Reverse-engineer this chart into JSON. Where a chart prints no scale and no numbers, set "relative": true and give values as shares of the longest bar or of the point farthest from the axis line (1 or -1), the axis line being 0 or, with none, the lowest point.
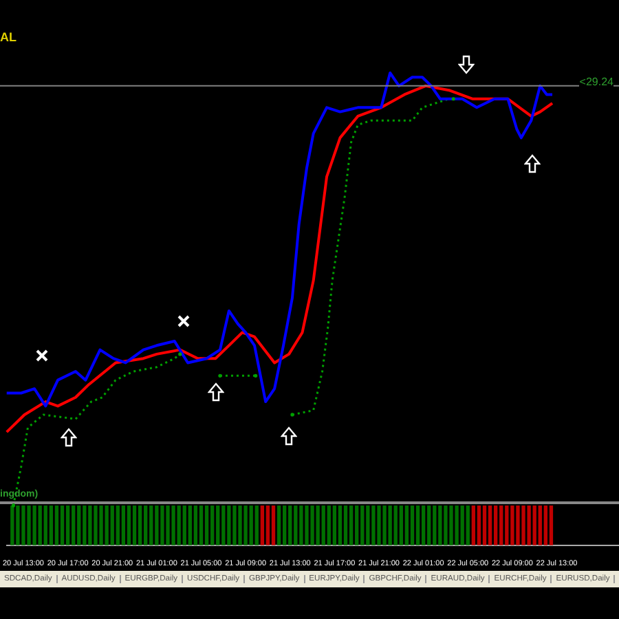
{
  "chart_data": {
    "type": "line",
    "relative": true,
    "tick_labels": "x",
    "legend": false,
    "marker": "none",
    "line_style": "solid",
    "xlim": [
      "--07-20T11:30",
      "--07-22T18:36"
    ],
    "xticks": [
      {
        "value": "--07-20T13:00",
        "label": "20 Jul 13:00"
      },
      {
        "value": "--07-20T17:00",
        "label": "20 Jul 17:00"
      },
      {
        "value": "--07-20T21:00",
        "label": "20 Jul 21:00"
      },
      {
        "value": "--07-21T01:00",
        "label": "21 Jul 01:00"
      },
      {
        "value": "--07-21T05:00",
        "label": "21 Jul 05:00"
      },
      {
        "value": "--07-21T09:00",
        "label": "21 Jul 09:00"
      },
      {
        "value": "--07-21T13:00",
        "label": "21 Jul 13:00"
      },
      {
        "value": "--07-21T17:00",
        "label": "21 Jul 17:00"
      },
      {
        "value": "--07-21T21:00",
        "label": "21 Jul 21:00"
      },
      {
        "value": "--07-22T01:00",
        "label": "22 Jul 01:00"
      },
      {
        "value": "--07-22T05:00",
        "label": "22 Jul 05:00"
      },
      {
        "value": "--07-22T09:00",
        "label": "22 Jul 09:00"
      },
      {
        "value": "--07-22T13:00",
        "label": "22 Jul 13:00"
      }
    ],
    "series": [
      {
        "color": "#0000ff",
        "x": [
          "--07-20T11:30",
          "--07-20T12:48",
          "--07-20T14:00",
          "--07-20T15:00",
          "--07-20T16:06",
          "--07-20T17:42",
          "--07-20T18:36",
          "--07-20T19:54",
          "--07-20T21:06",
          "--07-20T22:12",
          "--07-20T23:48",
          "--07-21T01:00",
          "--07-21T02:36",
          "--07-21T03:48",
          "--07-21T05:30",
          "--07-21T06:42",
          "--07-21T07:30",
          "--07-21T08:18",
          "--07-21T09:00",
          "--07-21T09:48",
          "--07-21T10:48",
          "--07-21T11:36",
          "--07-21T12:24",
          "--07-21T13:12",
          "--07-21T13:48",
          "--07-21T14:30",
          "--07-21T15:06",
          "--07-21T16:18",
          "--07-21T17:30",
          "--07-21T19:06",
          "--07-21T21:12",
          "--07-21T22:00",
          "--07-21T22:48",
          "--07-22T00:00",
          "--07-22T00:54",
          "--07-22T01:42",
          "--07-22T02:30",
          "--07-22T04:30",
          "--07-22T05:48",
          "--07-22T06:36",
          "--07-22T07:24",
          "--07-22T08:36",
          "--07-22T09:24",
          "--07-22T09:48",
          "--07-22T10:42",
          "--07-22T11:30",
          "--07-22T12:06",
          "--07-22T12:36"
        ],
        "values": [
          0.26,
          0.26,
          0.27,
          0.23,
          0.29,
          0.31,
          0.29,
          0.36,
          0.34,
          0.33,
          0.36,
          0.37,
          0.38,
          0.33,
          0.34,
          0.36,
          0.45,
          0.42,
          0.4,
          0.37,
          0.24,
          0.27,
          0.37,
          0.48,
          0.65,
          0.78,
          0.86,
          0.92,
          0.91,
          0.92,
          0.92,
          1.0,
          0.97,
          0.99,
          0.99,
          0.97,
          0.94,
          0.94,
          0.92,
          0.93,
          0.94,
          0.94,
          0.87,
          0.85,
          0.89,
          0.97,
          0.95,
          0.95
        ]
      },
      {
        "color": "#ff0000",
        "x": [
          "--07-20T11:30",
          "--07-20T13:06",
          "--07-20T15:00",
          "--07-20T16:06",
          "--07-20T17:42",
          "--07-20T18:54",
          "--07-20T21:18",
          "--07-20T23:48",
          "--07-21T01:00",
          "--07-21T03:06",
          "--07-21T04:42",
          "--07-21T06:18",
          "--07-21T07:30",
          "--07-21T08:42",
          "--07-21T09:48",
          "--07-21T11:36",
          "--07-21T12:54",
          "--07-21T14:06",
          "--07-21T15:06",
          "--07-21T16:18",
          "--07-21T17:30",
          "--07-21T19:06",
          "--07-21T21:12",
          "--07-21T23:18",
          "--07-22T01:12",
          "--07-22T03:18",
          "--07-22T05:24",
          "--07-22T07:24",
          "--07-22T08:36",
          "--07-22T10:42",
          "--07-22T11:30",
          "--07-22T12:36"
        ],
        "values": [
          0.17,
          0.21,
          0.24,
          0.23,
          0.25,
          0.28,
          0.33,
          0.34,
          0.35,
          0.36,
          0.34,
          0.34,
          0.37,
          0.4,
          0.39,
          0.33,
          0.35,
          0.4,
          0.52,
          0.76,
          0.85,
          0.9,
          0.92,
          0.95,
          0.97,
          0.96,
          0.94,
          0.94,
          0.94,
          0.9,
          0.91,
          0.93
        ]
      },
      {
        "color": "#00a000",
        "line_style": "dotted",
        "x": [
          "--07-20T12:06",
          "--07-20T12:48",
          "--07-20T13:24",
          "--07-20T14:48",
          "--07-20T17:42",
          "--07-20T19:06",
          "--07-20T20:06",
          "--07-20T21:18",
          "--07-20T22:54",
          "--07-21T01:00",
          "--07-21T02:36",
          "--07-21T03:06",
          "--07-21T05:00",
          "--07-21T06:42",
          "--07-21T09:54",
          "--07-21T11:00",
          "--07-21T13:12",
          "--07-21T15:06",
          "--07-21T15:54",
          "--07-21T16:24",
          "--07-21T16:48",
          "--07-21T17:54",
          "--07-21T18:30",
          "--07-21T19:06",
          "--07-21T20:18",
          "--07-22T00:00",
          "--07-22T00:54",
          "--07-22T02:06",
          "--07-22T03:18",
          "--07-22T03:42"
        ],
        "values": [
          0,
          0.09,
          0.18,
          0.21,
          0.2,
          0.24,
          0.25,
          0.29,
          0.31,
          0.32,
          0.34,
          0.35,
          null,
          0.3,
          0.3,
          null,
          0.21,
          0.22,
          0.31,
          0.41,
          0.52,
          0.71,
          0.84,
          0.88,
          0.89,
          0.89,
          0.92,
          0.93,
          0.94,
          0.94
        ]
      },
      {
        "type": "bar",
        "axis": "y2",
        "x": [
          "--07-20T12:00",
          "--07-20T12:30",
          "--07-20T13:00",
          "--07-20T13:30",
          "--07-20T14:00",
          "--07-20T14:30",
          "--07-20T15:00",
          "--07-20T15:30",
          "--07-20T16:00",
          "--07-20T16:30",
          "--07-20T17:00",
          "--07-20T17:30",
          "--07-20T18:00",
          "--07-20T18:30",
          "--07-20T19:00",
          "--07-20T19:30",
          "--07-20T20:00",
          "--07-20T20:30",
          "--07-20T21:00",
          "--07-20T21:30",
          "--07-20T22:00",
          "--07-20T22:30",
          "--07-20T23:00",
          "--07-20T23:30",
          "--07-21T00:00",
          "--07-21T00:30",
          "--07-21T01:00",
          "--07-21T01:30",
          "--07-21T02:00",
          "--07-21T02:30",
          "--07-21T03:00",
          "--07-21T03:30",
          "--07-21T04:00",
          "--07-21T04:30",
          "--07-21T05:00",
          "--07-21T05:30",
          "--07-21T06:00",
          "--07-21T06:30",
          "--07-21T07:00",
          "--07-21T07:30",
          "--07-21T08:00",
          "--07-21T08:30",
          "--07-21T09:00",
          "--07-21T09:30",
          "--07-21T10:00",
          "--07-21T10:30",
          "--07-21T11:00",
          "--07-21T11:30",
          "--07-21T12:00",
          "--07-21T12:30",
          "--07-21T13:00",
          "--07-21T13:30",
          "--07-21T14:00",
          "--07-21T14:30",
          "--07-21T15:00",
          "--07-21T15:30",
          "--07-21T16:00",
          "--07-21T16:30",
          "--07-21T17:00",
          "--07-21T17:30",
          "--07-21T18:00",
          "--07-21T18:30",
          "--07-21T19:00",
          "--07-21T19:30",
          "--07-21T20:00",
          "--07-21T20:30",
          "--07-21T21:00",
          "--07-21T21:30",
          "--07-21T22:00",
          "--07-21T22:30",
          "--07-21T23:00",
          "--07-21T23:30",
          "--07-22T00:00",
          "--07-22T00:30",
          "--07-22T01:00",
          "--07-22T01:30",
          "--07-22T02:00",
          "--07-22T02:30",
          "--07-22T03:00",
          "--07-22T03:30",
          "--07-22T04:00",
          "--07-22T04:30",
          "--07-22T05:00",
          "--07-22T05:30",
          "--07-22T06:00",
          "--07-22T06:30",
          "--07-22T07:00",
          "--07-22T07:30",
          "--07-22T08:00",
          "--07-22T08:30",
          "--07-22T09:00",
          "--07-22T09:30",
          "--07-22T10:00",
          "--07-22T10:30",
          "--07-22T11:00",
          "--07-22T11:30",
          "--07-22T12:00",
          "--07-22T12:30"
        ],
        "values": [
          1,
          1,
          1,
          1,
          1,
          1,
          1,
          1,
          1,
          1,
          1,
          1,
          1,
          1,
          1,
          1,
          1,
          1,
          1,
          1,
          1,
          1,
          1,
          1,
          1,
          1,
          1,
          1,
          1,
          1,
          1,
          1,
          1,
          1,
          1,
          1,
          1,
          1,
          1,
          1,
          1,
          1,
          1,
          1,
          1,
          1,
          1,
          1,
          1,
          1,
          1,
          1,
          1,
          1,
          1,
          1,
          1,
          1,
          1,
          1,
          1,
          1,
          1,
          1,
          1,
          1,
          1,
          1,
          1,
          1,
          1,
          1,
          1,
          1,
          1,
          1,
          1,
          1,
          1,
          1,
          1,
          1,
          1,
          1,
          1,
          1,
          1,
          1,
          1,
          1,
          1,
          1,
          1,
          1,
          1,
          1,
          1,
          1
        ],
        "colors": [
          "#007000",
          "#007000",
          "#007000",
          "#007000",
          "#007000",
          "#007000",
          "#007000",
          "#007000",
          "#007000",
          "#007000",
          "#007000",
          "#007000",
          "#007000",
          "#007000",
          "#007000",
          "#007000",
          "#007000",
          "#007000",
          "#007000",
          "#007000",
          "#007000",
          "#007000",
          "#007000",
          "#007000",
          "#007000",
          "#007000",
          "#007000",
          "#007000",
          "#007000",
          "#007000",
          "#007000",
          "#007000",
          "#007000",
          "#007000",
          "#007000",
          "#007000",
          "#007000",
          "#007000",
          "#007000",
          "#007000",
          "#007000",
          "#007000",
          "#007000",
          "#007000",
          "#007000",
          "#c00000",
          "#c00000",
          "#c00000",
          "#007000",
          "#007000",
          "#007000",
          "#007000",
          "#007000",
          "#007000",
          "#007000",
          "#007000",
          "#007000",
          "#007000",
          "#007000",
          "#007000",
          "#007000",
          "#007000",
          "#007000",
          "#007000",
          "#007000",
          "#007000",
          "#007000",
          "#007000",
          "#007000",
          "#007000",
          "#007000",
          "#007000",
          "#007000",
          "#007000",
          "#007000",
          "#007000",
          "#007000",
          "#007000",
          "#007000",
          "#007000",
          "#007000",
          "#007000",
          "#007000",
          "#c00000",
          "#c00000",
          "#c00000",
          "#c00000",
          "#c00000",
          "#c00000",
          "#c00000",
          "#c00000",
          "#c00000",
          "#c00000",
          "#c00000",
          "#c00000",
          "#c00000",
          "#c00000",
          "#c00000"
        ]
      }
    ],
    "ref_lines": [
      {
        "axis": "y",
        "value": 0.97,
        "color": "#808080"
      }
    ],
    "annotations": [
      "AL",
      "ingdom)",
      "<29.24",
      "SDCAD,Daily",
      "AUDUSD,Daily",
      "EURGBP,Daily",
      "USDCHF,Daily",
      "GBPJPY,Daily",
      "EURJPY,Daily",
      "GBPCHF,Daily",
      "EURAUD,Daily",
      "EURCHF,Daily",
      "EURUSD,Daily"
    ]
  }
}
